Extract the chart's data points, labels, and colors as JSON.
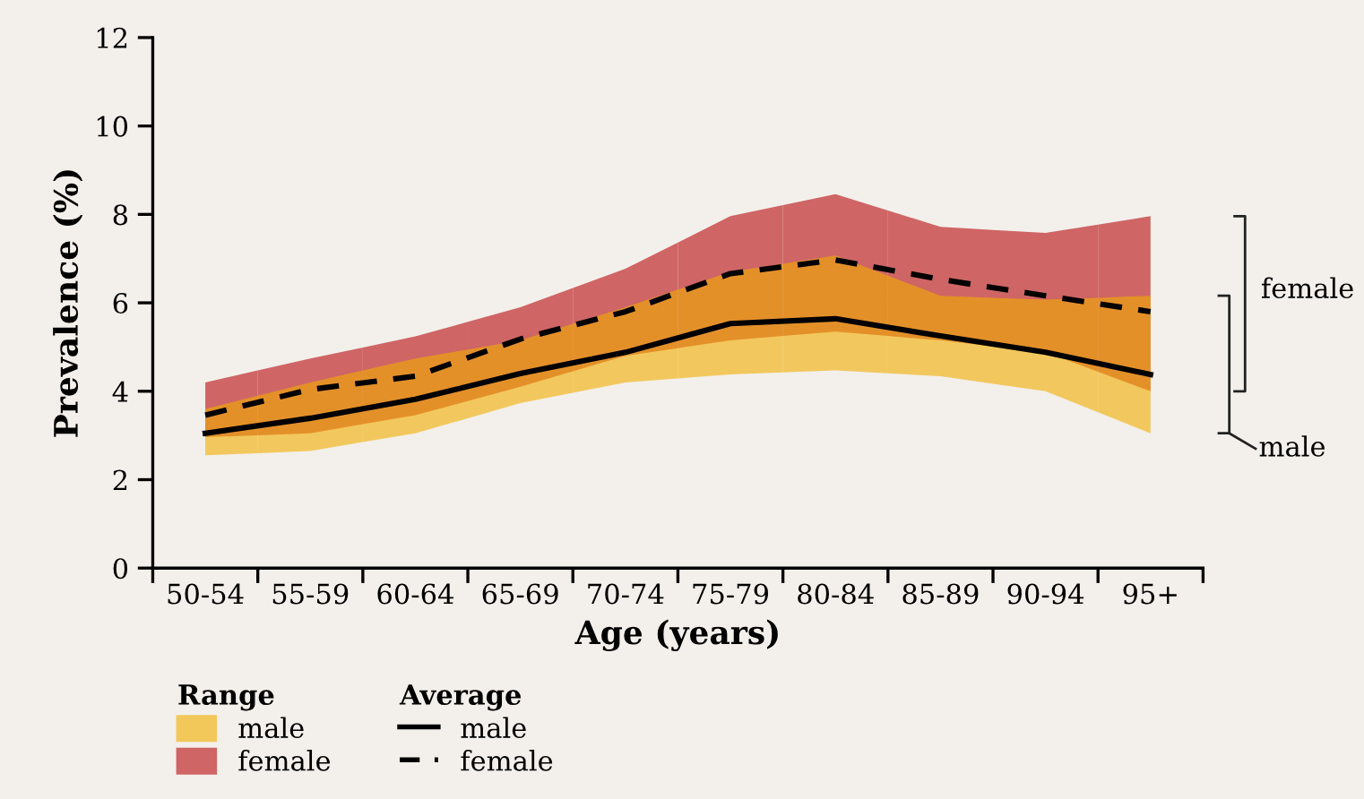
{
  "chart_data": {
    "type": "line",
    "xlabel": "Age (years)",
    "ylabel": "Prevalence (%)",
    "categories": [
      "50-54",
      "55-59",
      "60-64",
      "65-69",
      "70-74",
      "75-79",
      "80-84",
      "85-89",
      "90-94",
      "95+"
    ],
    "ylim": [
      0,
      12
    ],
    "yticks": [
      0,
      2,
      4,
      6,
      8,
      10,
      12
    ],
    "grid": false,
    "legend": "bottom left",
    "legend_title": [
      "Range",
      "Average"
    ],
    "series": [
      {
        "name": "male",
        "color": "#000000",
        "colors": [
          "#f2c85b",
          "#f2c85b",
          "#f2c85b",
          "#f2c85b",
          "#f2c85b",
          "#f2c85b",
          "#f2c85b",
          "#f2c85b",
          "#f2c85b",
          "#f2c85b"
        ],
        "line_style": "solid",
        "values": [
          3.05,
          3.39,
          3.82,
          4.4,
          4.88,
          5.53,
          5.64,
          5.25,
          4.88,
          4.38
        ],
        "lower": [
          2.55,
          2.65,
          3.05,
          3.73,
          4.2,
          4.38,
          4.47,
          4.34,
          4.0,
          3.05
        ],
        "upper": [
          3.6,
          4.2,
          4.74,
          5.15,
          5.9,
          6.7,
          7.07,
          6.16,
          6.07,
          6.16
        ]
      },
      {
        "name": "female",
        "color": "#000000",
        "colors": [
          "#cf6565",
          "#cf6565",
          "#cf6565",
          "#cf6565",
          "#cf6565",
          "#cf6565",
          "#cf6565",
          "#cf6565",
          "#cf6565",
          "#cf6565"
        ],
        "line_style": "dashed",
        "values": [
          3.46,
          4.04,
          4.34,
          5.18,
          5.8,
          6.66,
          6.97,
          6.53,
          6.16,
          5.8
        ],
        "lower": [
          2.96,
          3.05,
          3.46,
          4.1,
          4.8,
          5.15,
          5.35,
          5.15,
          4.88,
          4.0
        ],
        "upper": [
          4.2,
          4.74,
          5.24,
          5.9,
          6.77,
          7.96,
          8.46,
          7.72,
          7.58,
          7.96
        ]
      }
    ],
    "annotations": [
      "female",
      "male"
    ]
  }
}
